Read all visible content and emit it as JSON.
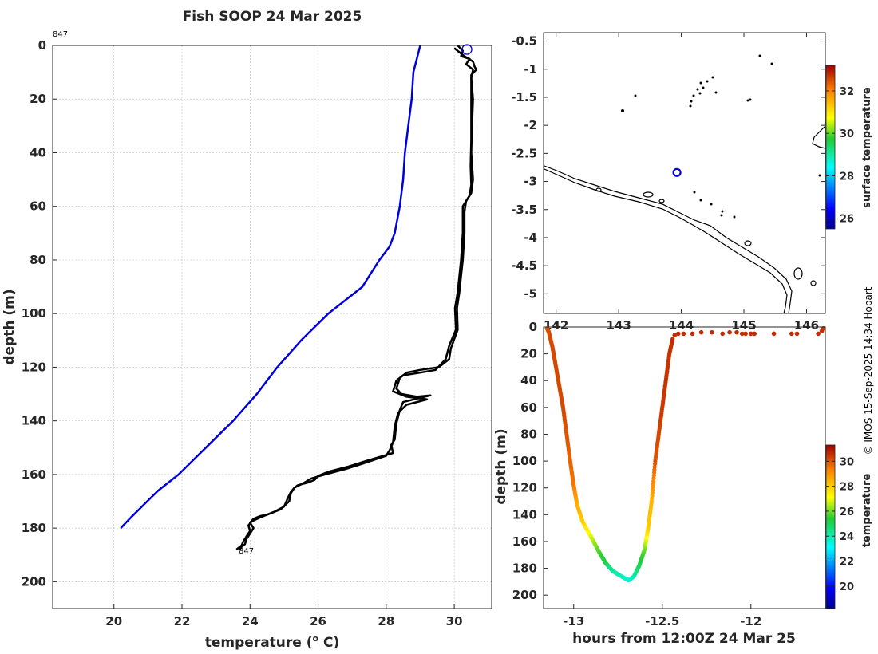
{
  "title": "Fish SOOP 24 Mar 2025",
  "credit": "© IMOS 15-Sep-2025 14:34 Hobart",
  "profile_id": "847",
  "chart_data": [
    {
      "type": "line",
      "name": "temperature-profile",
      "xlabel": "temperature (",
      "xlabel_sup": "o",
      "xlabel_tail": " C)",
      "ylabel": "depth (m)",
      "xlim": [
        18.2,
        31.1
      ],
      "ylim": [
        0,
        210
      ],
      "xticks": [
        "20",
        "22",
        "24",
        "26",
        "28",
        "30"
      ],
      "yticks": [
        "0",
        "20",
        "40",
        "60",
        "80",
        "100",
        "120",
        "140",
        "160",
        "180",
        "200"
      ],
      "grid": true,
      "series": [
        {
          "name": "climatology",
          "color": "#0000dd",
          "points": [
            [
              29.0,
              0
            ],
            [
              28.9,
              5
            ],
            [
              28.8,
              10
            ],
            [
              28.75,
              20
            ],
            [
              28.65,
              30
            ],
            [
              28.55,
              40
            ],
            [
              28.5,
              50
            ],
            [
              28.4,
              60
            ],
            [
              28.25,
              70
            ],
            [
              28.1,
              75
            ],
            [
              27.8,
              80
            ],
            [
              27.3,
              90
            ],
            [
              26.3,
              100
            ],
            [
              25.5,
              110
            ],
            [
              24.8,
              120
            ],
            [
              24.2,
              130
            ],
            [
              23.5,
              140
            ],
            [
              22.7,
              150
            ],
            [
              21.9,
              160
            ],
            [
              21.3,
              166
            ],
            [
              20.9,
              171
            ],
            [
              20.5,
              176
            ],
            [
              20.2,
              180
            ]
          ]
        },
        {
          "name": "profile-down",
          "color": "#000000",
          "points": [
            [
              30.1,
              0
            ],
            [
              30.25,
              2
            ],
            [
              30.2,
              4
            ],
            [
              30.45,
              5
            ],
            [
              30.35,
              7
            ],
            [
              30.55,
              9
            ],
            [
              30.5,
              12
            ],
            [
              30.55,
              20
            ],
            [
              30.52,
              30
            ],
            [
              30.5,
              40
            ],
            [
              30.55,
              50
            ],
            [
              30.5,
              55
            ],
            [
              30.35,
              58
            ],
            [
              30.3,
              62
            ],
            [
              30.3,
              70
            ],
            [
              30.25,
              80
            ],
            [
              30.2,
              86
            ],
            [
              30.15,
              92
            ],
            [
              30.08,
              98
            ],
            [
              30.1,
              106
            ],
            [
              29.9,
              113
            ],
            [
              29.85,
              117
            ],
            [
              29.55,
              120
            ],
            [
              29.0,
              121
            ],
            [
              28.6,
              122
            ],
            [
              28.4,
              124
            ],
            [
              28.3,
              128
            ],
            [
              28.45,
              130
            ],
            [
              28.9,
              131
            ],
            [
              29.3,
              130.5
            ],
            [
              28.5,
              133
            ],
            [
              28.4,
              136
            ],
            [
              28.3,
              141
            ],
            [
              28.25,
              147
            ],
            [
              28.15,
              149
            ],
            [
              28.2,
              152
            ],
            [
              27.4,
              155
            ],
            [
              26.9,
              157
            ],
            [
              26.3,
              159
            ],
            [
              26.0,
              160.5
            ],
            [
              25.9,
              162
            ],
            [
              25.7,
              163
            ],
            [
              25.4,
              164
            ],
            [
              25.3,
              165
            ],
            [
              25.2,
              167
            ],
            [
              25.15,
              170
            ],
            [
              24.9,
              173
            ],
            [
              24.5,
              175
            ],
            [
              24.3,
              175.5
            ],
            [
              24.1,
              176.5
            ],
            [
              24.0,
              178
            ],
            [
              24.1,
              180
            ],
            [
              24.0,
              182
            ],
            [
              23.9,
              184
            ],
            [
              23.85,
              186
            ],
            [
              23.75,
              187
            ],
            [
              23.7,
              188
            ]
          ]
        },
        {
          "name": "profile-up",
          "color": "#000000",
          "points": [
            [
              30.0,
              1
            ],
            [
              30.2,
              3
            ],
            [
              30.3,
              4
            ],
            [
              30.55,
              6
            ],
            [
              30.6,
              8
            ],
            [
              30.65,
              9
            ],
            [
              30.5,
              11
            ],
            [
              30.5,
              20
            ],
            [
              30.5,
              35
            ],
            [
              30.48,
              45
            ],
            [
              30.5,
              52
            ],
            [
              30.45,
              56
            ],
            [
              30.25,
              60
            ],
            [
              30.25,
              70
            ],
            [
              30.2,
              80
            ],
            [
              30.15,
              86
            ],
            [
              30.1,
              92
            ],
            [
              30.02,
              98
            ],
            [
              30.05,
              106
            ],
            [
              29.85,
              112
            ],
            [
              29.75,
              117
            ],
            [
              29.45,
              121
            ],
            [
              29.0,
              122
            ],
            [
              28.5,
              123
            ],
            [
              28.3,
              125
            ],
            [
              28.2,
              129
            ],
            [
              28.6,
              131
            ],
            [
              29.2,
              132
            ],
            [
              28.6,
              134
            ],
            [
              28.35,
              137
            ],
            [
              28.25,
              142
            ],
            [
              28.2,
              148
            ],
            [
              28.1,
              151
            ],
            [
              28.0,
              153
            ],
            [
              27.3,
              156
            ],
            [
              26.8,
              158
            ],
            [
              26.2,
              160
            ],
            [
              25.8,
              161.5
            ],
            [
              25.6,
              163
            ],
            [
              25.3,
              165
            ],
            [
              25.2,
              166.5
            ],
            [
              25.1,
              169
            ],
            [
              25.0,
              172
            ],
            [
              24.7,
              174
            ],
            [
              24.3,
              176
            ],
            [
              24.05,
              177.5
            ],
            [
              23.95,
              179
            ],
            [
              24.0,
              181
            ],
            [
              23.9,
              183
            ],
            [
              23.8,
              185
            ],
            [
              23.75,
              186.5
            ],
            [
              23.6,
              188
            ]
          ]
        }
      ]
    },
    {
      "type": "map",
      "name": "location-map",
      "xlim": [
        141.8,
        146.3
      ],
      "ylim": [
        -5.35,
        -0.35
      ],
      "xticks": [
        "142",
        "143",
        "144",
        "145",
        "146"
      ],
      "yticks": [
        "-0.5",
        "-1",
        "-1.5",
        "-2",
        "-2.5",
        "-3",
        "-3.5",
        "-4",
        "-4.5",
        "-5"
      ],
      "marker": {
        "lon": 143.93,
        "lat": -2.84
      },
      "colorbar": {
        "label": "surface temperature",
        "range": [
          25.5,
          33.2
        ],
        "ticks": [
          "26",
          "28",
          "30",
          "32"
        ]
      }
    },
    {
      "type": "scatter",
      "name": "depth-time-track",
      "xlabel": "hours from 12:00Z 24 Mar 25",
      "ylabel": "depth (m)",
      "xlim": [
        -13.17,
        -11.58
      ],
      "ylim": [
        0,
        210
      ],
      "xticks": [
        "-13",
        "-12.5",
        "-12"
      ],
      "yticks": [
        "0",
        "20",
        "40",
        "60",
        "80",
        "100",
        "120",
        "140",
        "160",
        "180",
        "200"
      ],
      "track": [
        [
          -13.15,
          1,
          30.1
        ],
        [
          -13.14,
          4,
          30.1
        ],
        [
          -13.12,
          15,
          30.2
        ],
        [
          -13.1,
          30,
          30.2
        ],
        [
          -13.08,
          45,
          30.2
        ],
        [
          -13.06,
          60,
          30.2
        ],
        [
          -13.04,
          80,
          30.0
        ],
        [
          -13.02,
          100,
          29.8
        ],
        [
          -13.0,
          118,
          29.5
        ],
        [
          -12.98,
          133,
          28.5
        ],
        [
          -12.95,
          145,
          28.0
        ],
        [
          -12.9,
          157,
          26.8
        ],
        [
          -12.86,
          167,
          25.8
        ],
        [
          -12.82,
          176,
          25.2
        ],
        [
          -12.78,
          182,
          24.2
        ],
        [
          -12.73,
          186,
          23.9
        ],
        [
          -12.69,
          189,
          23.6
        ],
        [
          -12.66,
          186,
          23.9
        ],
        [
          -12.63,
          178,
          25.0
        ],
        [
          -12.6,
          166,
          25.9
        ],
        [
          -12.58,
          150,
          28.0
        ],
        [
          -12.56,
          130,
          28.4
        ],
        [
          -12.54,
          100,
          30.0
        ],
        [
          -12.52,
          80,
          30.2
        ],
        [
          -12.5,
          60,
          30.4
        ],
        [
          -12.48,
          40,
          30.5
        ],
        [
          -12.46,
          20,
          30.5
        ],
        [
          -12.44,
          8,
          30.6
        ]
      ],
      "surface_points": [
        [
          -12.43,
          6
        ],
        [
          -12.41,
          5
        ],
        [
          -12.38,
          5
        ],
        [
          -12.33,
          5
        ],
        [
          -12.28,
          4
        ],
        [
          -12.22,
          4
        ],
        [
          -12.16,
          5
        ],
        [
          -12.12,
          4
        ],
        [
          -12.08,
          4
        ],
        [
          -12.05,
          5
        ],
        [
          -12.03,
          5
        ],
        [
          -12.0,
          5
        ],
        [
          -11.98,
          5
        ],
        [
          -11.87,
          5
        ],
        [
          -11.77,
          5
        ],
        [
          -11.74,
          5
        ],
        [
          -11.62,
          5
        ],
        [
          -11.6,
          3
        ],
        [
          -11.59,
          1
        ]
      ],
      "colorbar": {
        "label": "temperature",
        "range": [
          18.2,
          31.3
        ],
        "ticks": [
          "20",
          "22",
          "24",
          "26",
          "28",
          "30"
        ]
      }
    }
  ],
  "colors": {
    "grid": "#c8c8c8",
    "axis": "#262626",
    "marker": "#0000dd",
    "coast": "#000000"
  }
}
